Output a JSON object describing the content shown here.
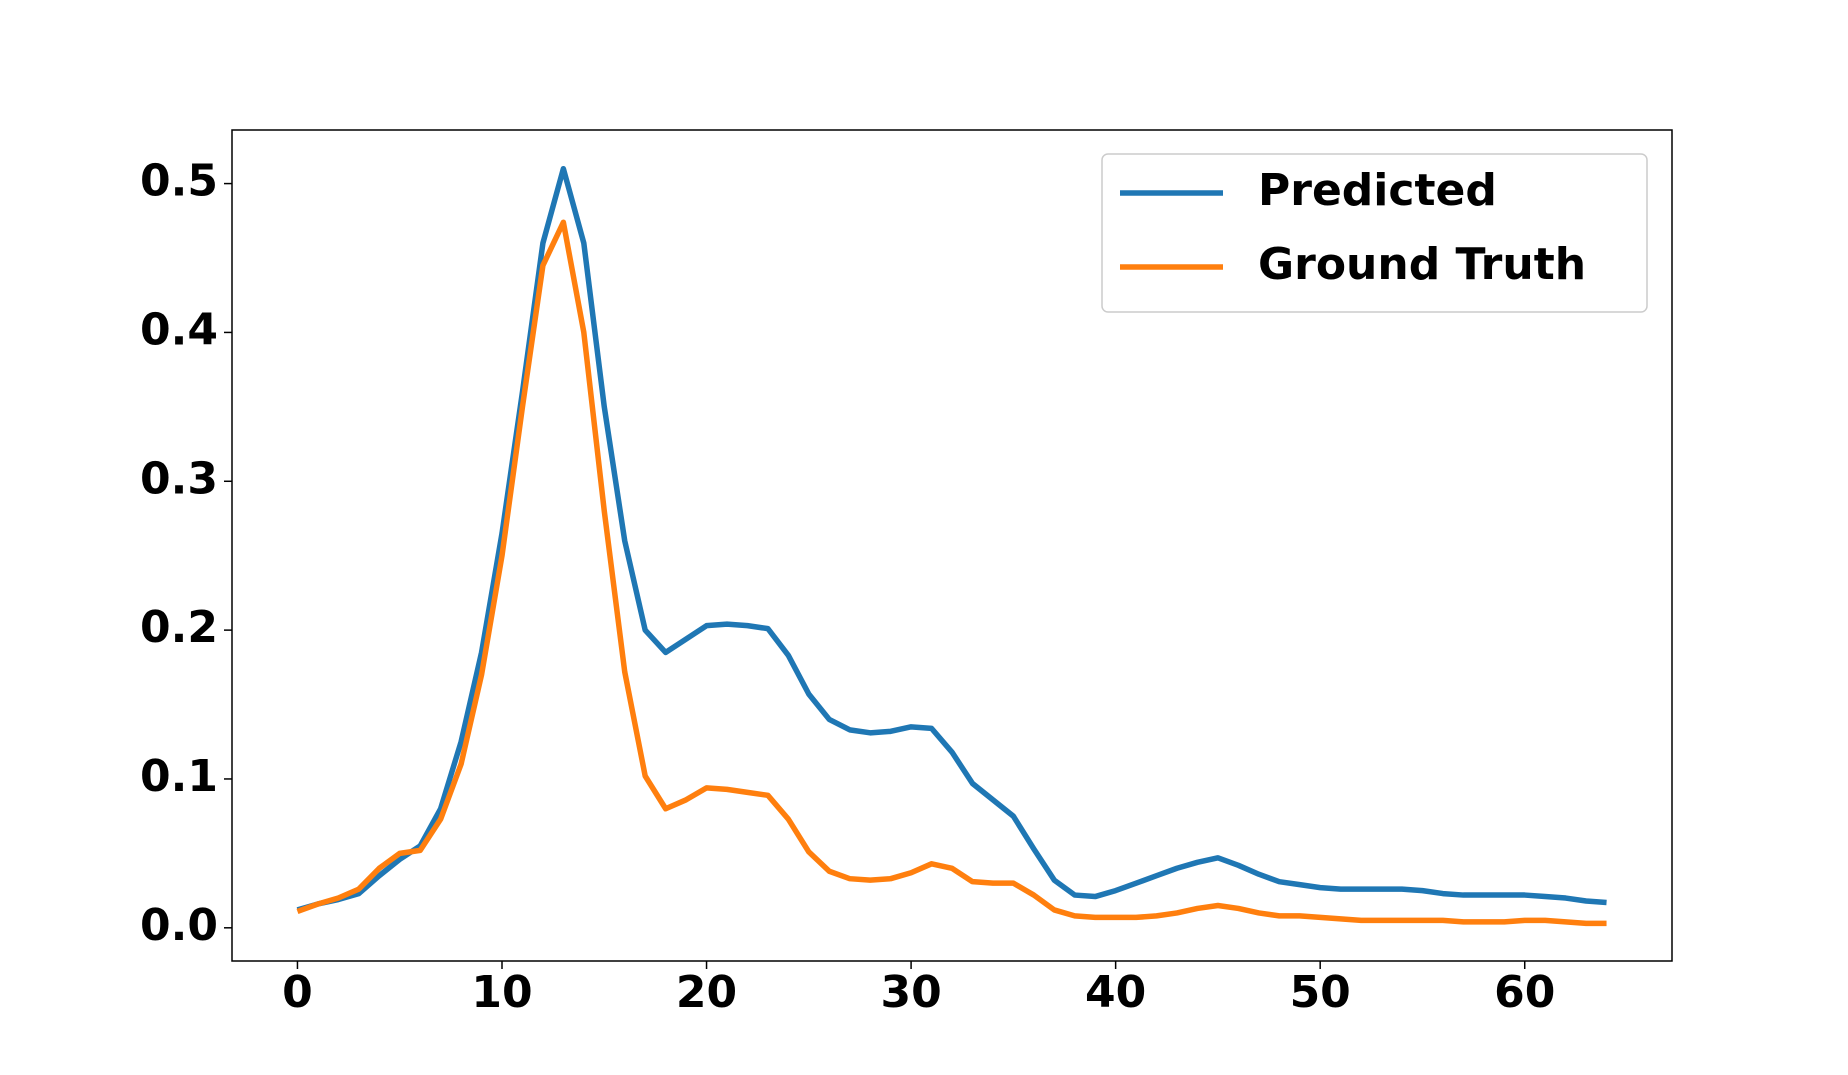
{
  "chart_data": {
    "type": "line",
    "x": [
      0,
      1,
      2,
      3,
      4,
      5,
      6,
      7,
      8,
      9,
      10,
      11,
      12,
      13,
      14,
      15,
      16,
      17,
      18,
      19,
      20,
      21,
      22,
      23,
      24,
      25,
      26,
      27,
      28,
      29,
      30,
      31,
      32,
      33,
      34,
      35,
      36,
      37,
      38,
      39,
      40,
      41,
      42,
      43,
      44,
      45,
      46,
      47,
      48,
      49,
      50,
      51,
      52,
      53,
      54,
      55,
      56,
      57,
      58,
      59,
      60,
      61,
      62,
      63,
      64
    ],
    "series": [
      {
        "name": "Predicted",
        "color": "#1f77b4",
        "values": [
          0.012,
          0.016,
          0.019,
          0.023,
          0.035,
          0.046,
          0.055,
          0.08,
          0.125,
          0.185,
          0.265,
          0.36,
          0.46,
          0.51,
          0.46,
          0.35,
          0.26,
          0.2,
          0.185,
          0.194,
          0.203,
          0.204,
          0.203,
          0.201,
          0.183,
          0.157,
          0.14,
          0.133,
          0.131,
          0.132,
          0.135,
          0.134,
          0.118,
          0.097,
          0.086,
          0.075,
          0.053,
          0.032,
          0.022,
          0.021,
          0.025,
          0.03,
          0.035,
          0.04,
          0.044,
          0.047,
          0.042,
          0.036,
          0.031,
          0.029,
          0.027,
          0.026,
          0.026,
          0.026,
          0.026,
          0.025,
          0.023,
          0.022,
          0.022,
          0.022,
          0.022,
          0.021,
          0.02,
          0.018,
          0.017
        ]
      },
      {
        "name": "Ground Truth",
        "color": "#ff7f0e",
        "values": [
          0.011,
          0.016,
          0.02,
          0.026,
          0.04,
          0.05,
          0.052,
          0.073,
          0.11,
          0.17,
          0.25,
          0.35,
          0.445,
          0.474,
          0.4,
          0.28,
          0.172,
          0.102,
          0.08,
          0.086,
          0.094,
          0.093,
          0.091,
          0.089,
          0.073,
          0.051,
          0.038,
          0.033,
          0.032,
          0.033,
          0.037,
          0.043,
          0.04,
          0.031,
          0.03,
          0.03,
          0.022,
          0.012,
          0.008,
          0.007,
          0.007,
          0.007,
          0.008,
          0.01,
          0.013,
          0.015,
          0.013,
          0.01,
          0.008,
          0.008,
          0.007,
          0.006,
          0.005,
          0.005,
          0.005,
          0.005,
          0.005,
          0.004,
          0.004,
          0.004,
          0.005,
          0.005,
          0.004,
          0.003,
          0.003
        ]
      }
    ],
    "xlim": [
      -3.2,
      67.2
    ],
    "xticks": [
      0,
      10,
      20,
      30,
      40,
      50,
      60
    ],
    "ylim": [
      -0.0223,
      0.536
    ],
    "yticks": [
      {
        "value": 0,
        "label": "0.0"
      },
      0.1,
      0.2,
      0.3,
      0.4,
      0.5
    ],
    "legend": "upper right"
  }
}
